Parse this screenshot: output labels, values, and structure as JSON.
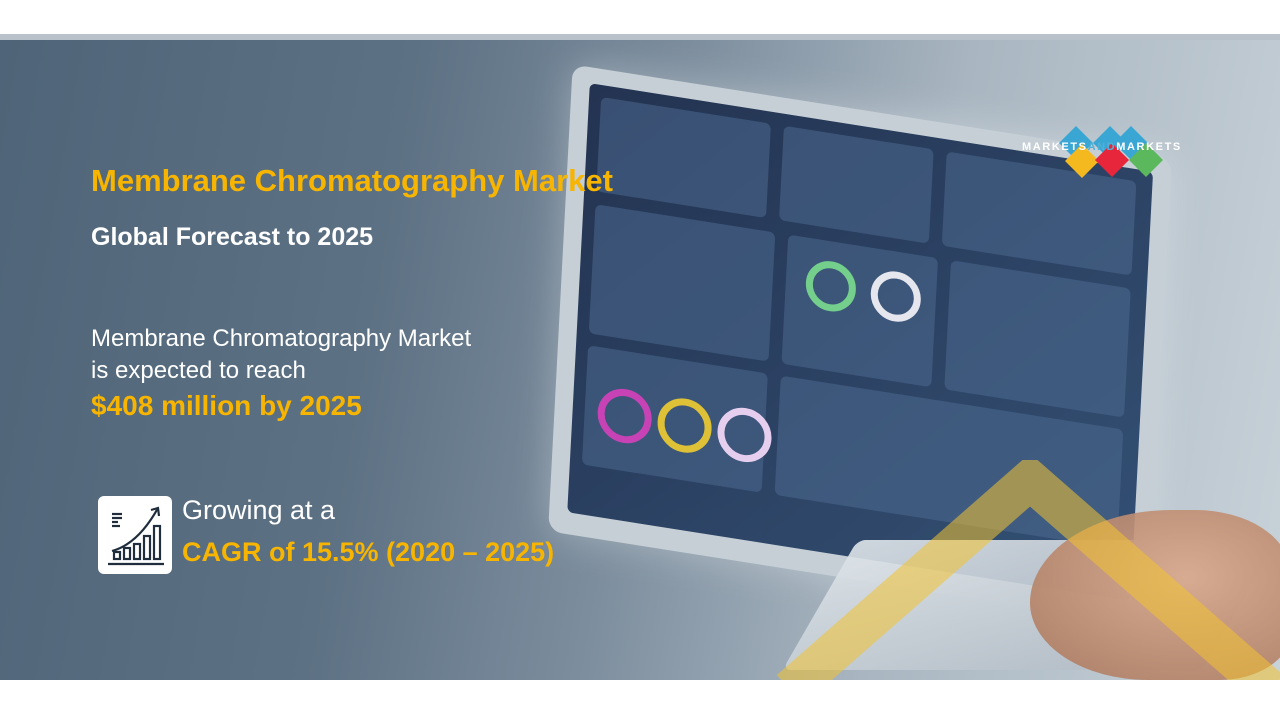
{
  "title": "Membrane Chromatography Market",
  "subtitle": "Global Forecast to 2025",
  "description": {
    "line1": "Membrane Chromatography Market",
    "line2": "is expected to  reach",
    "value": "$408 million by 2025"
  },
  "growth": {
    "label": "Growing at a",
    "cagr": "CAGR of  15.5% (2020 – 2025)",
    "icon": "growth-chart-icon"
  },
  "logo": {
    "text_a": "MARKETS",
    "text_and": "AND",
    "text_b": "MARKETS",
    "colors": [
      "#f3b91e",
      "#3aa6d4",
      "#e8263b",
      "#5cb85c"
    ]
  },
  "colors": {
    "accent": "#f7b500",
    "text": "#ffffff"
  }
}
